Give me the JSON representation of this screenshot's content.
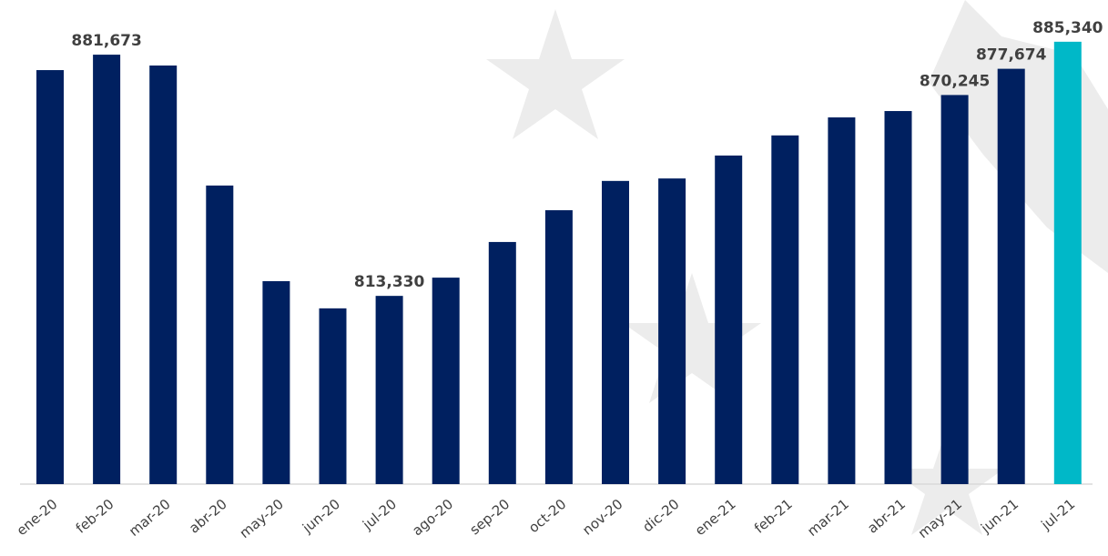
{
  "chart_data": {
    "type": "bar",
    "categories": [
      "ene-20",
      "feb-20",
      "mar-20",
      "abr-20",
      "may-20",
      "jun-20",
      "jul-20",
      "ago-20",
      "sep-20",
      "oct-20",
      "nov-20",
      "dic-20",
      "ene-21",
      "feb-21",
      "mar-21",
      "abr-21",
      "may-21",
      "jun-21",
      "jul-21"
    ],
    "values": [
      877300,
      881673,
      878600,
      844600,
      817500,
      809800,
      813330,
      818500,
      828600,
      837600,
      845900,
      846600,
      853100,
      858800,
      863900,
      865700,
      870245,
      877674,
      885340
    ],
    "value_labels": [
      null,
      "881,673",
      null,
      null,
      null,
      null,
      "813,330",
      null,
      null,
      null,
      null,
      null,
      null,
      null,
      null,
      null,
      "870,245",
      "877,674",
      "885,340"
    ],
    "colors": [
      "#002060",
      "#002060",
      "#002060",
      "#002060",
      "#002060",
      "#002060",
      "#002060",
      "#002060",
      "#002060",
      "#002060",
      "#002060",
      "#002060",
      "#002060",
      "#002060",
      "#002060",
      "#002060",
      "#002060",
      "#002060",
      "#00b8c8"
    ],
    "ylim": [
      760000,
      900000
    ]
  }
}
